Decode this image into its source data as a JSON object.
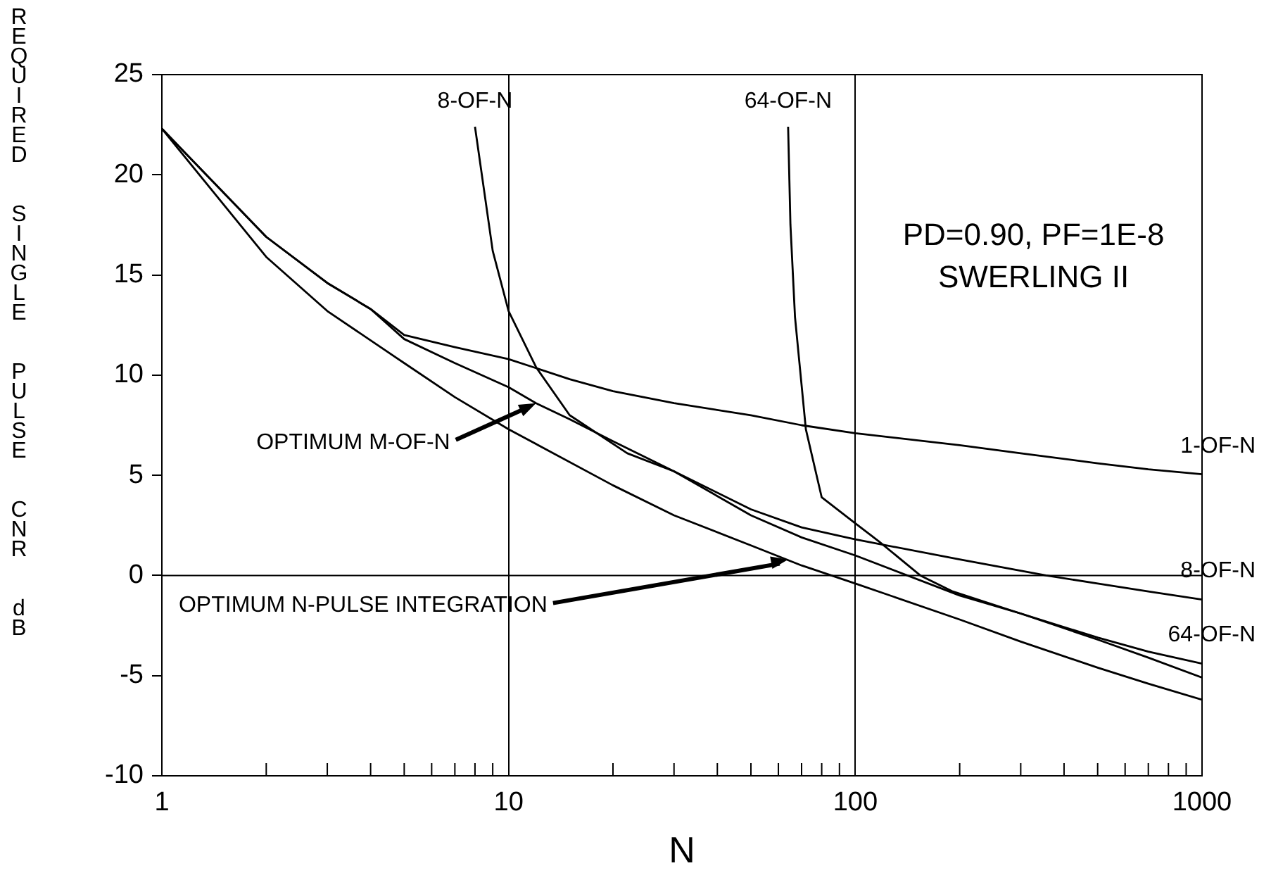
{
  "chart_data": {
    "type": "line",
    "xlabel": "N",
    "ylabel": "REQUIRED SINGLE PULSE CNR dB",
    "log": "x",
    "xlim": [
      1,
      1000
    ],
    "ylim": [
      -10,
      25
    ],
    "xticks": [
      1,
      {
        "value": 2,
        "label": null
      },
      {
        "value": 3,
        "label": null
      },
      {
        "value": 4,
        "label": null
      },
      {
        "value": 5,
        "label": null
      },
      {
        "value": 6,
        "label": null
      },
      {
        "value": 7,
        "label": null
      },
      {
        "value": 8,
        "label": null
      },
      {
        "value": 9,
        "label": null
      },
      10,
      {
        "value": 20,
        "label": null
      },
      {
        "value": 30,
        "label": null
      },
      {
        "value": 40,
        "label": null
      },
      {
        "value": 50,
        "label": null
      },
      {
        "value": 60,
        "label": null
      },
      {
        "value": 70,
        "label": null
      },
      {
        "value": 80,
        "label": null
      },
      {
        "value": 90,
        "label": null
      },
      100,
      {
        "value": 200,
        "label": null
      },
      {
        "value": 300,
        "label": null
      },
      {
        "value": 400,
        "label": null
      },
      {
        "value": 500,
        "label": null
      },
      {
        "value": 600,
        "label": null
      },
      {
        "value": 700,
        "label": null
      },
      {
        "value": 800,
        "label": null
      },
      {
        "value": 900,
        "label": null
      },
      1000
    ],
    "yticks": [
      -10,
      -5,
      0,
      5,
      10,
      15,
      20,
      25
    ],
    "grid": "x",
    "legend": false,
    "marker": "none",
    "line_style": "solid",
    "ref_lines": [
      {
        "axis": "y",
        "value": 0,
        "color": "#000000"
      }
    ],
    "series": [
      {
        "name": "1-OF-N",
        "color": "#000000",
        "x": [
          1,
          2,
          3,
          4,
          5,
          7,
          10,
          15,
          20,
          30,
          50,
          70,
          100,
          200,
          300,
          500,
          700,
          1000
        ],
        "values": [
          22.3,
          16.9,
          14.6,
          13.3,
          12.0,
          11.4,
          10.8,
          9.8,
          9.2,
          8.6,
          8.0,
          7.5,
          7.1,
          6.5,
          6.1,
          5.6,
          5.3,
          5.05
        ]
      },
      {
        "name": "8-OF-N",
        "color": "#000000",
        "x": [
          8,
          9,
          10,
          12,
          15,
          22,
          30,
          50,
          70,
          100,
          200,
          355,
          500,
          700,
          1000
        ],
        "values": [
          22.4,
          16.2,
          13.2,
          10.4,
          8.0,
          6.1,
          5.2,
          3.3,
          2.4,
          1.8,
          0.8,
          0,
          -0.4,
          -0.8,
          -1.2
        ]
      },
      {
        "name": "64-OF-N",
        "color": "#000000",
        "x": [
          64,
          65,
          67,
          72,
          80,
          100,
          117,
          154,
          191,
          300,
          500,
          700,
          1000
        ],
        "values": [
          22.4,
          17.5,
          12.9,
          7.3,
          3.9,
          2.6,
          1.7,
          0,
          -0.8,
          -1.9,
          -3.1,
          -3.8,
          -4.4
        ]
      },
      {
        "color": "#000000",
        "x": [
          1,
          2,
          3,
          4,
          5,
          7,
          10,
          12,
          15,
          20,
          30,
          50,
          70,
          100,
          200,
          300,
          500,
          700,
          1000
        ],
        "values": [
          22.3,
          16.9,
          14.6,
          13.3,
          11.8,
          10.6,
          9.4,
          8.6,
          7.8,
          6.7,
          5.2,
          3.0,
          1.9,
          1.0,
          -1.0,
          -1.9,
          -3.2,
          -4.1,
          -5.1
        ]
      },
      {
        "color": "#000000",
        "x": [
          1,
          2,
          3,
          5,
          7,
          10,
          20,
          30,
          50,
          70,
          100,
          200,
          300,
          500,
          700,
          1000
        ],
        "values": [
          22.3,
          15.9,
          13.2,
          10.6,
          8.9,
          7.3,
          4.5,
          3.0,
          1.5,
          0.5,
          -0.4,
          -2.2,
          -3.3,
          -4.6,
          -5.4,
          -6.2
        ]
      }
    ],
    "annotations": [
      "PD=0.90, PF=1E-8",
      "SWERLING II",
      {
        "text": "OPTIMUM M-OF-N",
        "x": 12,
        "y": 8.6
      },
      {
        "text": "OPTIMUM N-PULSE INTEGRATION",
        "x": 64,
        "y": 0.8
      }
    ]
  }
}
